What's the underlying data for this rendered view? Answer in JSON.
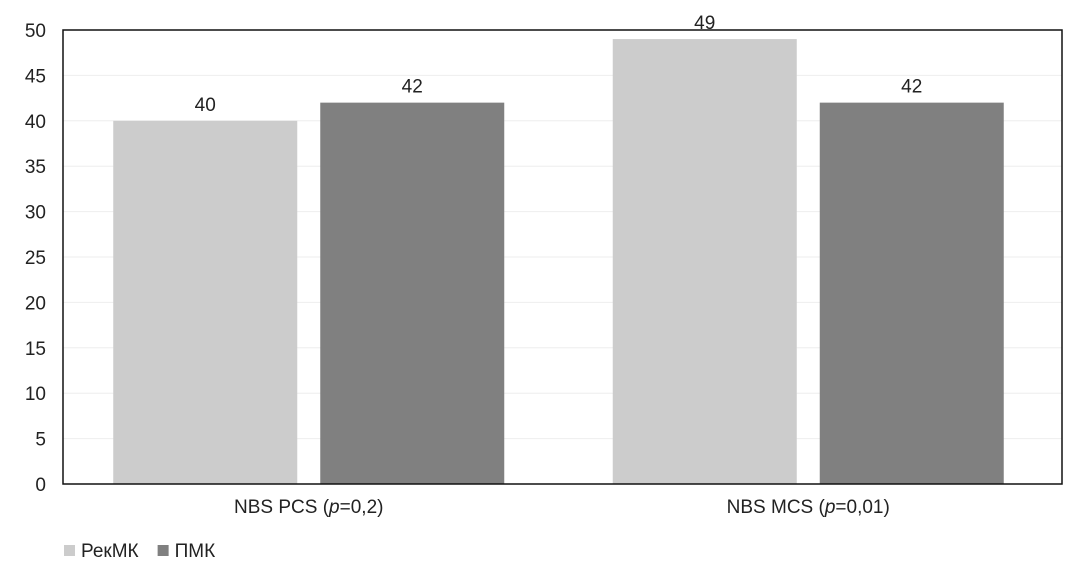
{
  "chart_data": {
    "type": "bar",
    "title": "",
    "xlabel": "",
    "ylabel": "",
    "ylim": [
      0,
      50
    ],
    "yticks": [
      0,
      5,
      10,
      15,
      20,
      25,
      30,
      35,
      40,
      45,
      50
    ],
    "grid": true,
    "legend_position": "bottom-left",
    "categories": [
      {
        "prefix": "NBS PCS (",
        "italic": "p",
        "suffix": "=0,2)"
      },
      {
        "prefix": "NBS MCS (",
        "italic": "p",
        "suffix": "=0,01)"
      }
    ],
    "series": [
      {
        "name": "РекМК",
        "color": "#cccccc",
        "values": [
          40,
          49
        ]
      },
      {
        "name": "ПМК",
        "color": "#808080",
        "values": [
          42,
          42
        ]
      }
    ]
  }
}
